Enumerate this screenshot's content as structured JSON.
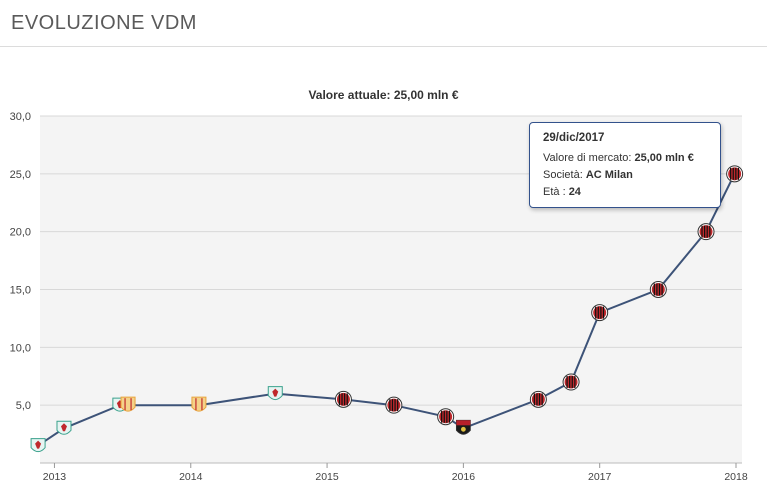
{
  "header": {
    "title": "EVOLUZIONE VDM"
  },
  "chart_data": {
    "type": "line",
    "title": "Valore attuale: 25,00 mln €",
    "ylim": [
      0,
      30
    ],
    "yticks": [
      0,
      5,
      10,
      15,
      20,
      25,
      30
    ],
    "ytick_labels": [
      "",
      "5,0",
      "10,0",
      "15,0",
      "20,0",
      "25,0",
      "30,0"
    ],
    "xlim": [
      2012.85,
      2018.0
    ],
    "xticks": [
      2013,
      2014,
      2015,
      2016,
      2017,
      2018
    ],
    "xtick_labels": [
      "2013",
      "2014",
      "2015",
      "2016",
      "2017",
      "2018"
    ],
    "grid": true,
    "series": [
      {
        "color": "#3d5378",
        "points": [
          {
            "x": 2012.88,
            "y": 1.5,
            "club": "liverpool"
          },
          {
            "x": 2013.07,
            "y": 3.0,
            "club": "liverpool"
          },
          {
            "x": 2013.48,
            "y": 5.0,
            "club": "liverpool"
          },
          {
            "x": 2013.54,
            "y": 5.0,
            "club": "almeria"
          },
          {
            "x": 2014.06,
            "y": 5.0,
            "club": "almeria"
          },
          {
            "x": 2014.62,
            "y": 6.0,
            "club": "liverpool"
          },
          {
            "x": 2015.12,
            "y": 5.5,
            "club": "milan"
          },
          {
            "x": 2015.49,
            "y": 5.0,
            "club": "milan"
          },
          {
            "x": 2015.87,
            "y": 4.0,
            "club": "milan"
          },
          {
            "x": 2016.0,
            "y": 3.0,
            "club": "genoa"
          },
          {
            "x": 2016.55,
            "y": 5.5,
            "club": "milan"
          },
          {
            "x": 2016.79,
            "y": 7.0,
            "club": "milan"
          },
          {
            "x": 2017.0,
            "y": 13.0,
            "club": "milan"
          },
          {
            "x": 2017.43,
            "y": 15.0,
            "club": "milan"
          },
          {
            "x": 2017.78,
            "y": 20.0,
            "club": "milan"
          },
          {
            "x": 2017.99,
            "y": 25.0,
            "club": "milan"
          }
        ]
      }
    ],
    "tooltip": {
      "date": "29/dic/2017",
      "market_value_label": "Valore di mercato:",
      "market_value": "25,00 mln €",
      "club_label": "Società:",
      "club": "AC Milan",
      "age_label": "Età :",
      "age": "24"
    },
    "club_colors": {
      "liverpool": "#e6f4f2",
      "almeria": "#e8a33c",
      "milan": "#c0282c",
      "genoa": "#b8202a"
    }
  }
}
